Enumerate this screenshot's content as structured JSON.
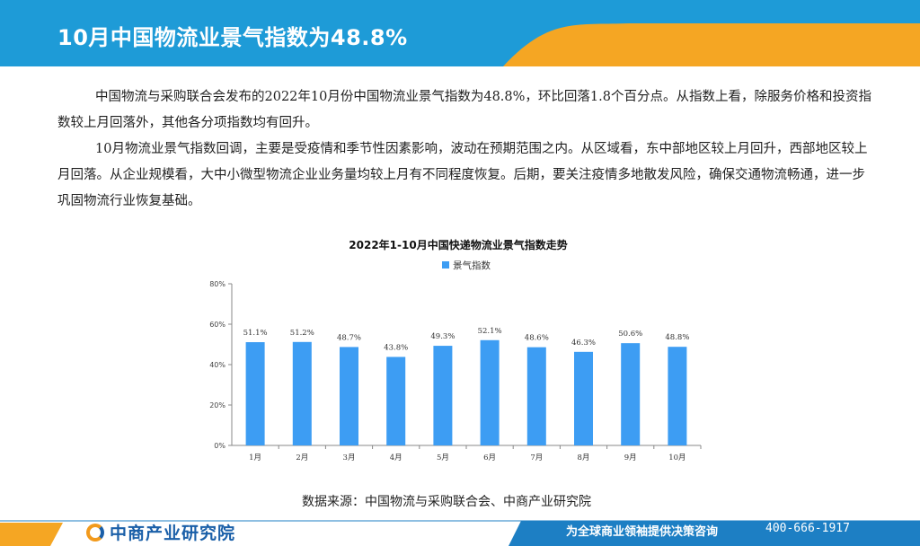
{
  "header": {
    "title": "10月中国物流业景气指数为48.8%"
  },
  "body": {
    "paragraph1": "中国物流与采购联合会发布的2022年10月份中国物流业景气指数为48.8%，环比回落1.8个百分点。从指数上看，除服务价格和投资指数较上月回落外，其他各分项指数均有回升。",
    "paragraph2": "10月物流业景气指数回调，主要是受疫情和季节性因素影响，波动在预期范围之内。从区域看，东中部地区较上月回升，西部地区较上月回落。从企业规模看，大中小微型物流企业业务量均较上月有不同程度恢复。后期，要关注疫情多地散发风险，确保交通物流畅通，进一步巩固物流行业恢复基础。"
  },
  "chart_data": {
    "type": "bar",
    "title": "2022年1-10月中国快递物流业景气指数走势",
    "categories": [
      "1月",
      "2月",
      "3月",
      "4月",
      "5月",
      "6月",
      "7月",
      "8月",
      "9月",
      "10月"
    ],
    "series": [
      {
        "name": "景气指数",
        "values": [
          51.1,
          51.2,
          48.7,
          43.8,
          49.3,
          52.1,
          48.6,
          46.3,
          50.6,
          48.8
        ]
      }
    ],
    "value_labels": [
      "51.1%",
      "51.2%",
      "48.7%",
      "43.8%",
      "49.3%",
      "52.1%",
      "48.6%",
      "46.3%",
      "50.6%",
      "48.8%"
    ],
    "yticks": [
      "0%",
      "20%",
      "40%",
      "60%",
      "80%"
    ],
    "ylim": [
      0,
      80
    ],
    "bar_color": "#3d9df3",
    "legend_position": "top"
  },
  "source": "数据来源：中国物流与采购联合会、中商产业研究院",
  "footer": {
    "logo_text": "中商产业研究院",
    "slogan": "为全球商业领袖提供决策咨询",
    "phone": "400-666-1917"
  },
  "colors": {
    "header_blue": "#1e9bd7",
    "accent_orange": "#f5a623",
    "footer_blue": "#1d7fc4"
  }
}
